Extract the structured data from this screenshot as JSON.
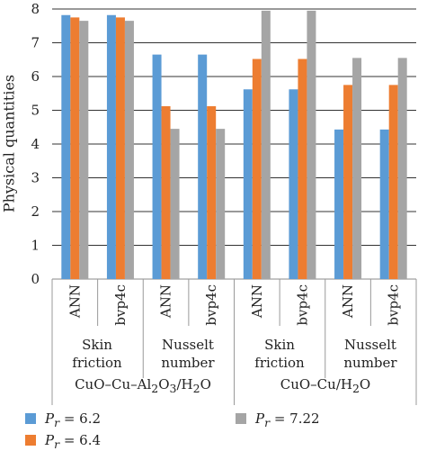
{
  "chart_data": {
    "type": "bar",
    "ylabel": "Physical quantities",
    "ylim": [
      0,
      8
    ],
    "yticks": [
      0,
      1,
      2,
      3,
      4,
      5,
      6,
      7,
      8
    ],
    "grid": true,
    "categories": [
      "ANN",
      "bvp4c",
      "ANN",
      "bvp4c",
      "ANN",
      "bvp4c",
      "ANN",
      "bvp4c"
    ],
    "quantity_groups": [
      {
        "line1": "Skin",
        "line2": "friction"
      },
      {
        "line1": "Nusselt",
        "line2": "number"
      },
      {
        "line1": "Skin",
        "line2": "friction"
      },
      {
        "line1": "Nusselt",
        "line2": "number"
      }
    ],
    "datasets": [
      {
        "label_parts": [
          "CuO–Cu–Al",
          "2",
          "O",
          "3",
          "/H",
          "2",
          "O"
        ]
      },
      {
        "label_parts": [
          "CuO–Cu/H",
          "2",
          "O"
        ]
      }
    ],
    "series": [
      {
        "name_var": "P",
        "name_sub": "r",
        "name_rest": " = 6.2",
        "color": "#5b9bd5",
        "values": [
          7.82,
          7.82,
          6.65,
          6.65,
          5.62,
          5.62,
          4.43,
          4.43
        ]
      },
      {
        "name_var": "P",
        "name_sub": "r",
        "name_rest": " = 6.4",
        "color": "#ed7d31",
        "values": [
          7.75,
          7.75,
          5.12,
          5.12,
          6.52,
          6.52,
          5.75,
          5.75
        ]
      },
      {
        "name_var": "P",
        "name_sub": "r",
        "name_rest": " = 7.22",
        "color": "#a5a5a5",
        "values": [
          7.65,
          7.65,
          4.45,
          4.45,
          7.95,
          7.95,
          6.55,
          6.55
        ]
      }
    ],
    "legend_position": "bottom"
  }
}
